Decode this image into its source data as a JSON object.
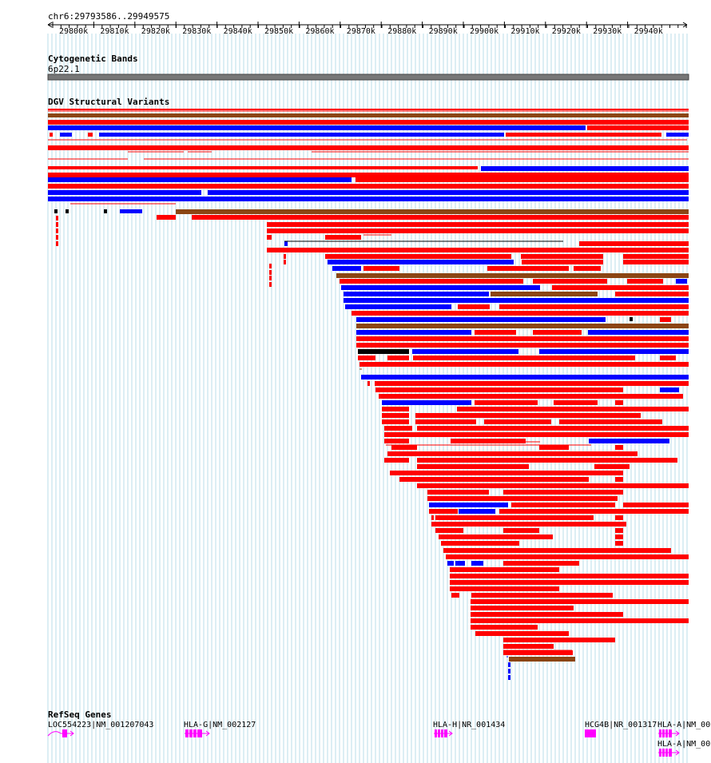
{
  "ruler": {
    "position_label": "chr6:29793586..29949575",
    "ticks": [
      "29800k",
      "29810k",
      "29820k",
      "29830k",
      "29840k",
      "29850k",
      "29860k",
      "29870k",
      "29880k",
      "29890k",
      "29900k",
      "29910k",
      "29920k",
      "29930k",
      "29940k"
    ]
  },
  "tracks": {
    "cytoband": {
      "title": "Cytogenetic Bands",
      "band": "6p22.1"
    },
    "dgv": {
      "title": "DGV Structural Variants"
    },
    "refseq": {
      "title": "RefSeq Genes",
      "genes": [
        {
          "label": "LOC554223|NM_001207043"
        },
        {
          "label": "HLA-G|NM_002127"
        },
        {
          "label": "HLA-H|NR_001434"
        },
        {
          "label": "HCG4B|NR_001317"
        },
        {
          "label": "HLA-A|NM_00"
        },
        {
          "label": "HLA-A|NM_00"
        }
      ]
    }
  },
  "colors": {
    "gain": "#0000ff",
    "loss": "#ff0000",
    "complex": "#8b4513",
    "other": "#000000",
    "gene": "#ff00ff",
    "grid": "#add8e6"
  }
}
